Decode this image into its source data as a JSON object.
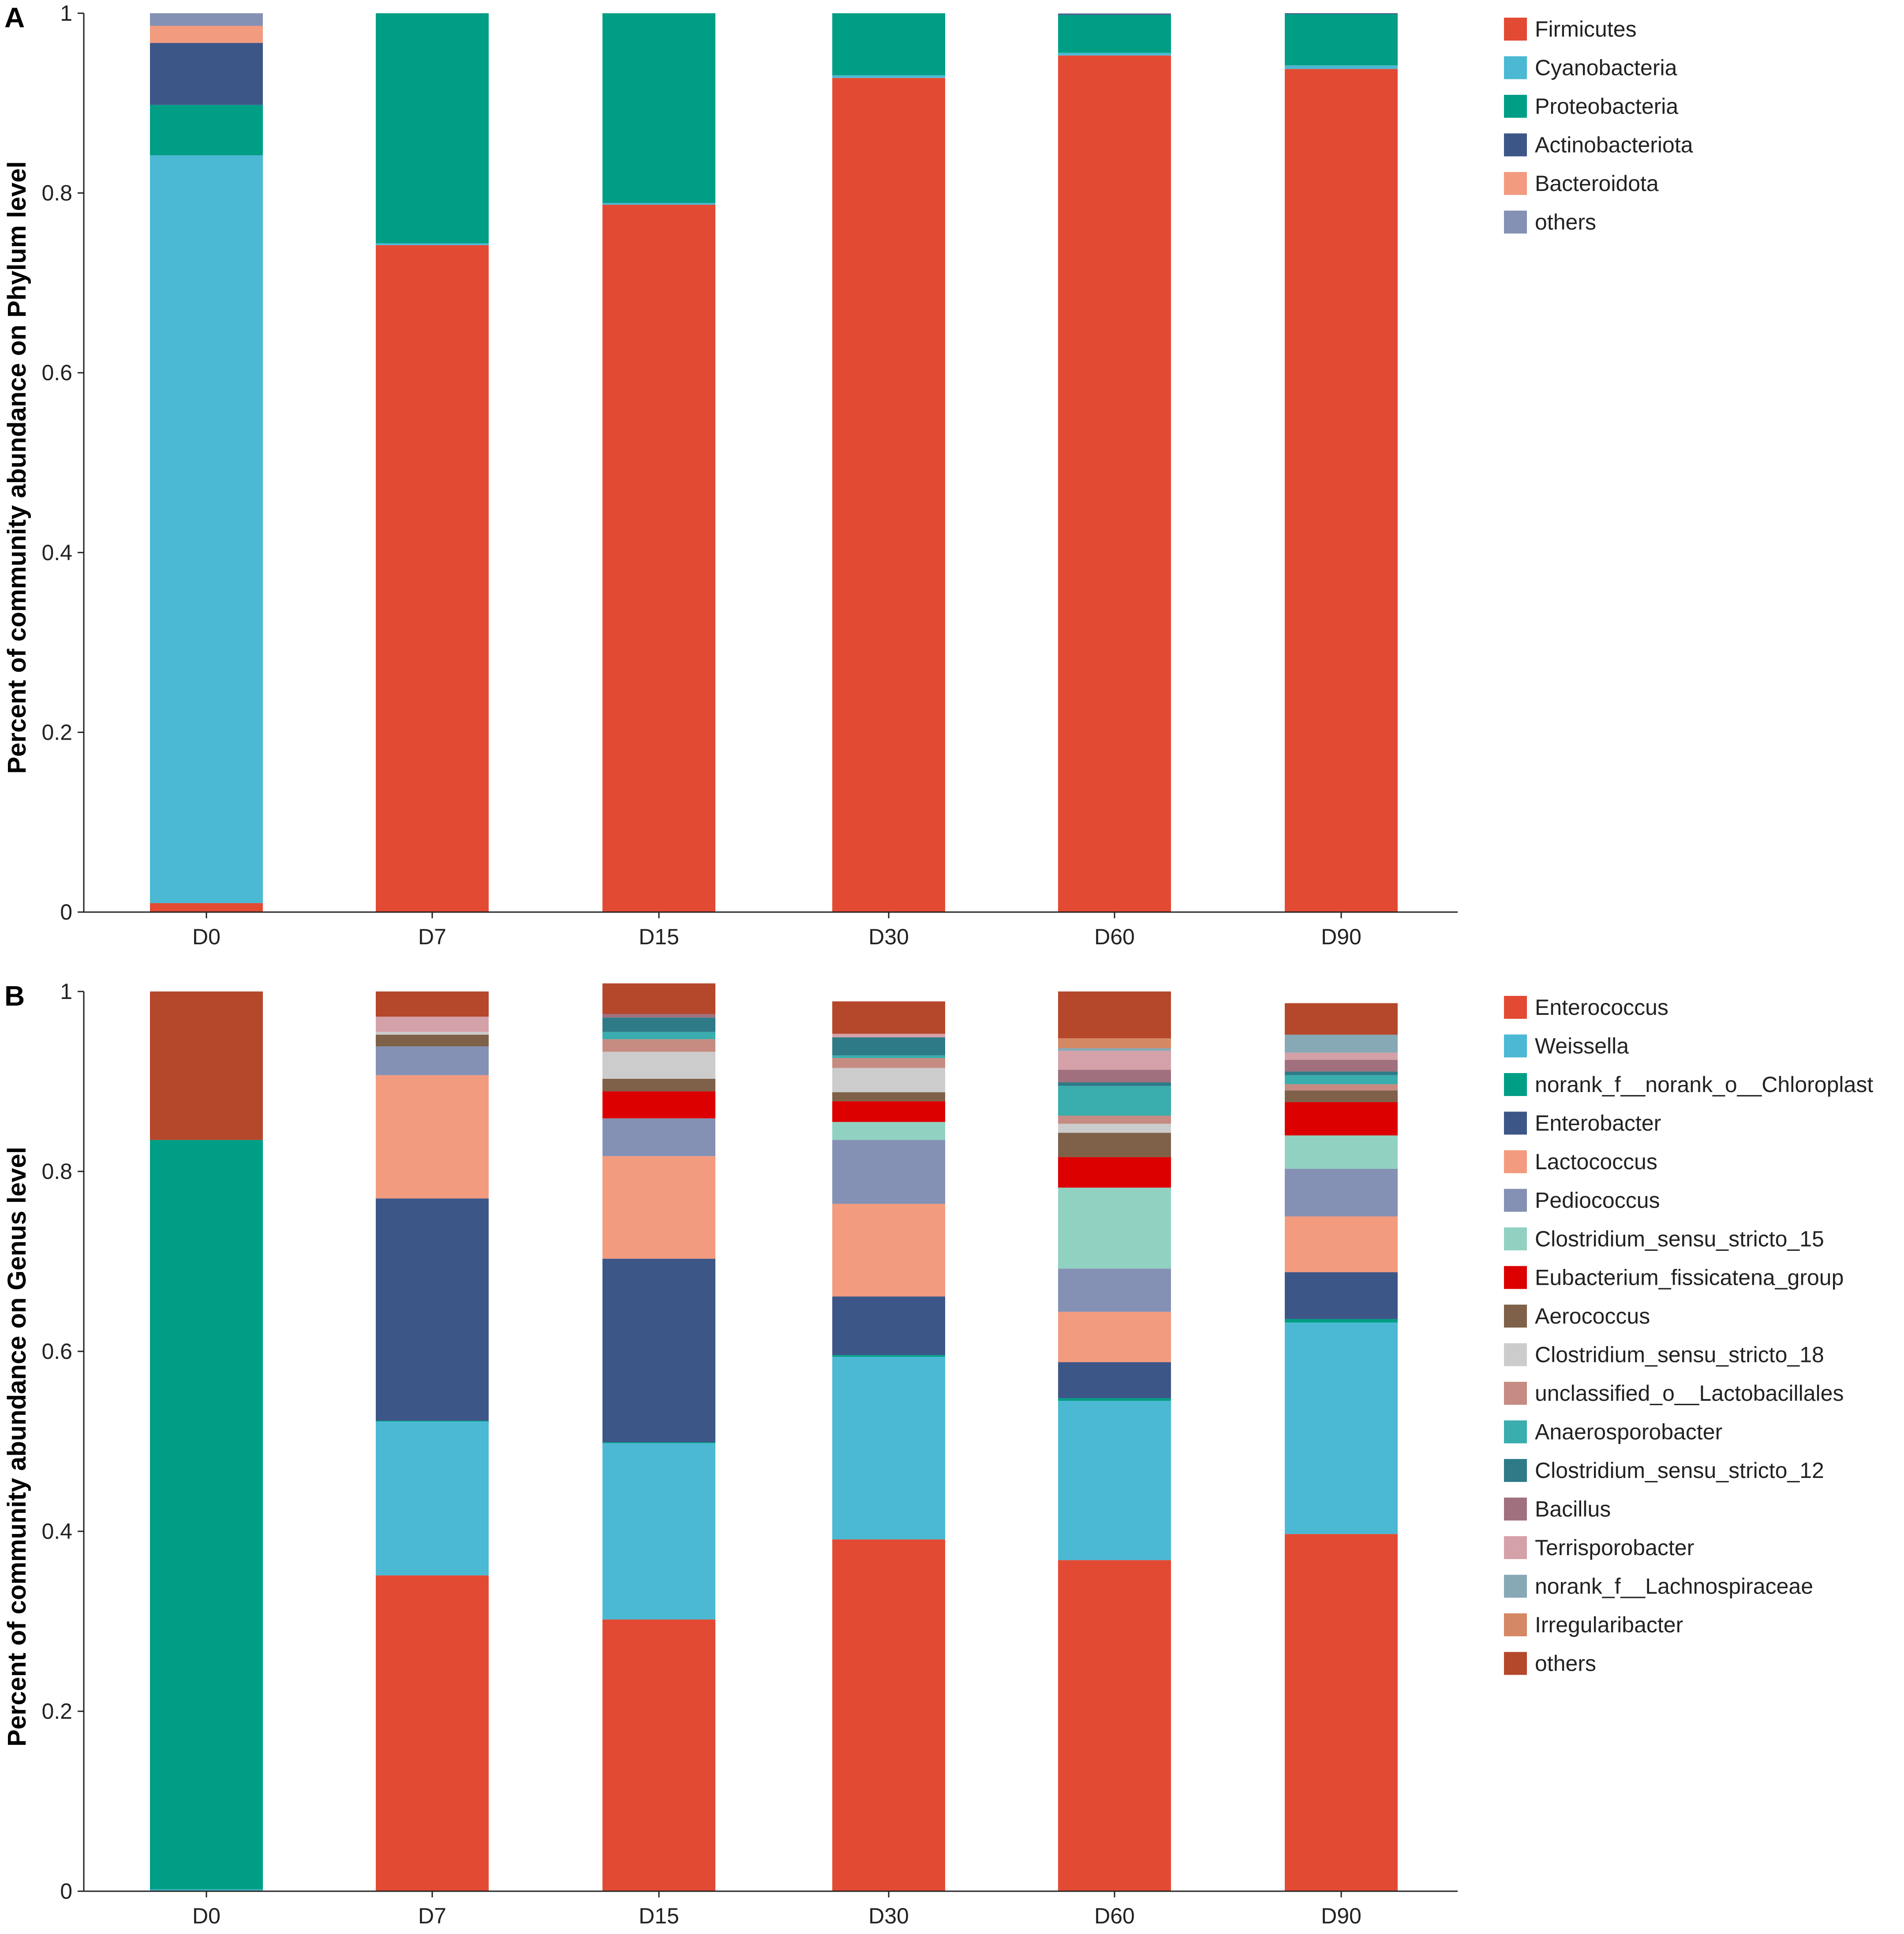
{
  "chart_data": [
    {
      "type": "bar",
      "stacked": true,
      "panel": "A",
      "ylabel": "Percent of community abundance on Phylum level",
      "xlabel": "",
      "ylim": [
        0,
        1
      ],
      "yticks": [
        "0",
        "0.2",
        "0.4",
        "0.6",
        "0.8",
        "1"
      ],
      "categories": [
        "D0",
        "D7",
        "D15",
        "D30",
        "D60",
        "D90"
      ],
      "legend_position": "right",
      "series": [
        {
          "name": "Firmicutes",
          "color": "#E34A33",
          "values": [
            0.01,
            0.742,
            0.787,
            0.928,
            0.953,
            0.938
          ]
        },
        {
          "name": "Cyanobacteria",
          "color": "#4BB9D3",
          "values": [
            0.832,
            0.002,
            0.002,
            0.003,
            0.003,
            0.004
          ]
        },
        {
          "name": "Proteobacteria",
          "color": "#009E85",
          "values": [
            0.056,
            0.256,
            0.211,
            0.069,
            0.042,
            0.057
          ]
        },
        {
          "name": "Actinobacteriota",
          "color": "#3D5688",
          "values": [
            0.069,
            0.0,
            0.0,
            0.0,
            0.001,
            0.001
          ]
        },
        {
          "name": "Bacteroidota",
          "color": "#F39B7F",
          "values": [
            0.019,
            0.0,
            0.0,
            0.0,
            0.0,
            0.0
          ]
        },
        {
          "name": "others",
          "color": "#8491B4",
          "values": [
            0.014,
            0.0,
            0.0,
            0.0,
            0.001,
            0.0
          ]
        }
      ]
    },
    {
      "type": "bar",
      "stacked": true,
      "panel": "B",
      "ylabel": "Percent of community abundance on Genus level",
      "xlabel": "",
      "ylim": [
        0,
        1
      ],
      "yticks": [
        "0",
        "0.2",
        "0.4",
        "0.6",
        "0.8",
        "1"
      ],
      "categories": [
        "D0",
        "D7",
        "D15",
        "D30",
        "D60",
        "D90"
      ],
      "legend_position": "right",
      "series": [
        {
          "name": "Enterococcus",
          "color": "#E34A33",
          "values": [
            0.0,
            0.351,
            0.302,
            0.391,
            0.368,
            0.397
          ]
        },
        {
          "name": "Weissella",
          "color": "#4BB9D3",
          "values": [
            0.002,
            0.171,
            0.196,
            0.203,
            0.177,
            0.235
          ]
        },
        {
          "name": "norank_f__norank_o__Chloroplast",
          "color": "#009E85",
          "values": [
            0.833,
            0.001,
            0.001,
            0.002,
            0.003,
            0.004
          ]
        },
        {
          "name": "Enterobacter",
          "color": "#3D5688",
          "values": [
            0.0,
            0.247,
            0.204,
            0.065,
            0.04,
            0.052
          ]
        },
        {
          "name": "Lactococcus",
          "color": "#F39B7F",
          "values": [
            0.0,
            0.137,
            0.114,
            0.103,
            0.056,
            0.062
          ]
        },
        {
          "name": "Pediococcus",
          "color": "#8491B4",
          "values": [
            0.0,
            0.032,
            0.042,
            0.071,
            0.048,
            0.053
          ]
        },
        {
          "name": "Clostridium_sensu_stricto_15",
          "color": "#91D1C2",
          "values": [
            0.0,
            0.0,
            0.0,
            0.02,
            0.09,
            0.037
          ]
        },
        {
          "name": "Eubacterium_fissicatena_group",
          "color": "#DC0000",
          "values": [
            0.0,
            0.0,
            0.03,
            0.023,
            0.034,
            0.037
          ]
        },
        {
          "name": "Aerococcus",
          "color": "#7E6148",
          "values": [
            0.0,
            0.013,
            0.014,
            0.01,
            0.027,
            0.013
          ]
        },
        {
          "name": "Clostridium_sensu_stricto_18",
          "color": "#CCCCCC",
          "values": [
            0.0,
            0.003,
            0.03,
            0.027,
            0.01,
            0.0
          ]
        },
        {
          "name": "unclassified_o__Lactobacillales",
          "color": "#C68B82",
          "values": [
            0.0,
            0.0,
            0.014,
            0.011,
            0.009,
            0.007
          ]
        },
        {
          "name": "Anaerosporobacter",
          "color": "#3AADAE",
          "values": [
            0.0,
            0.0,
            0.008,
            0.003,
            0.033,
            0.01
          ]
        },
        {
          "name": "Clostridium_sensu_stricto_12",
          "color": "#2E7A87",
          "values": [
            0.0,
            0.0,
            0.016,
            0.02,
            0.004,
            0.004
          ]
        },
        {
          "name": "Bacillus",
          "color": "#A0707F",
          "values": [
            0.0,
            0.0,
            0.004,
            0.0,
            0.014,
            0.013
          ]
        },
        {
          "name": "Terrisporobacter",
          "color": "#D5A1A8",
          "values": [
            0.0,
            0.017,
            0.0,
            0.004,
            0.021,
            0.008
          ]
        },
        {
          "name": "norank_f__Lachnospiraceae",
          "color": "#87A8B5",
          "values": [
            0.0,
            0.0,
            0.0,
            0.0,
            0.003,
            0.02
          ]
        },
        {
          "name": "Irregularibacter",
          "color": "#D48863",
          "values": [
            0.0,
            0.0,
            0.0,
            0.0,
            0.011,
            0.0
          ]
        },
        {
          "name": "others",
          "color": "#B5472B",
          "values": [
            0.165,
            0.028,
            0.034,
            0.036,
            0.052,
            0.035
          ]
        }
      ]
    }
  ]
}
